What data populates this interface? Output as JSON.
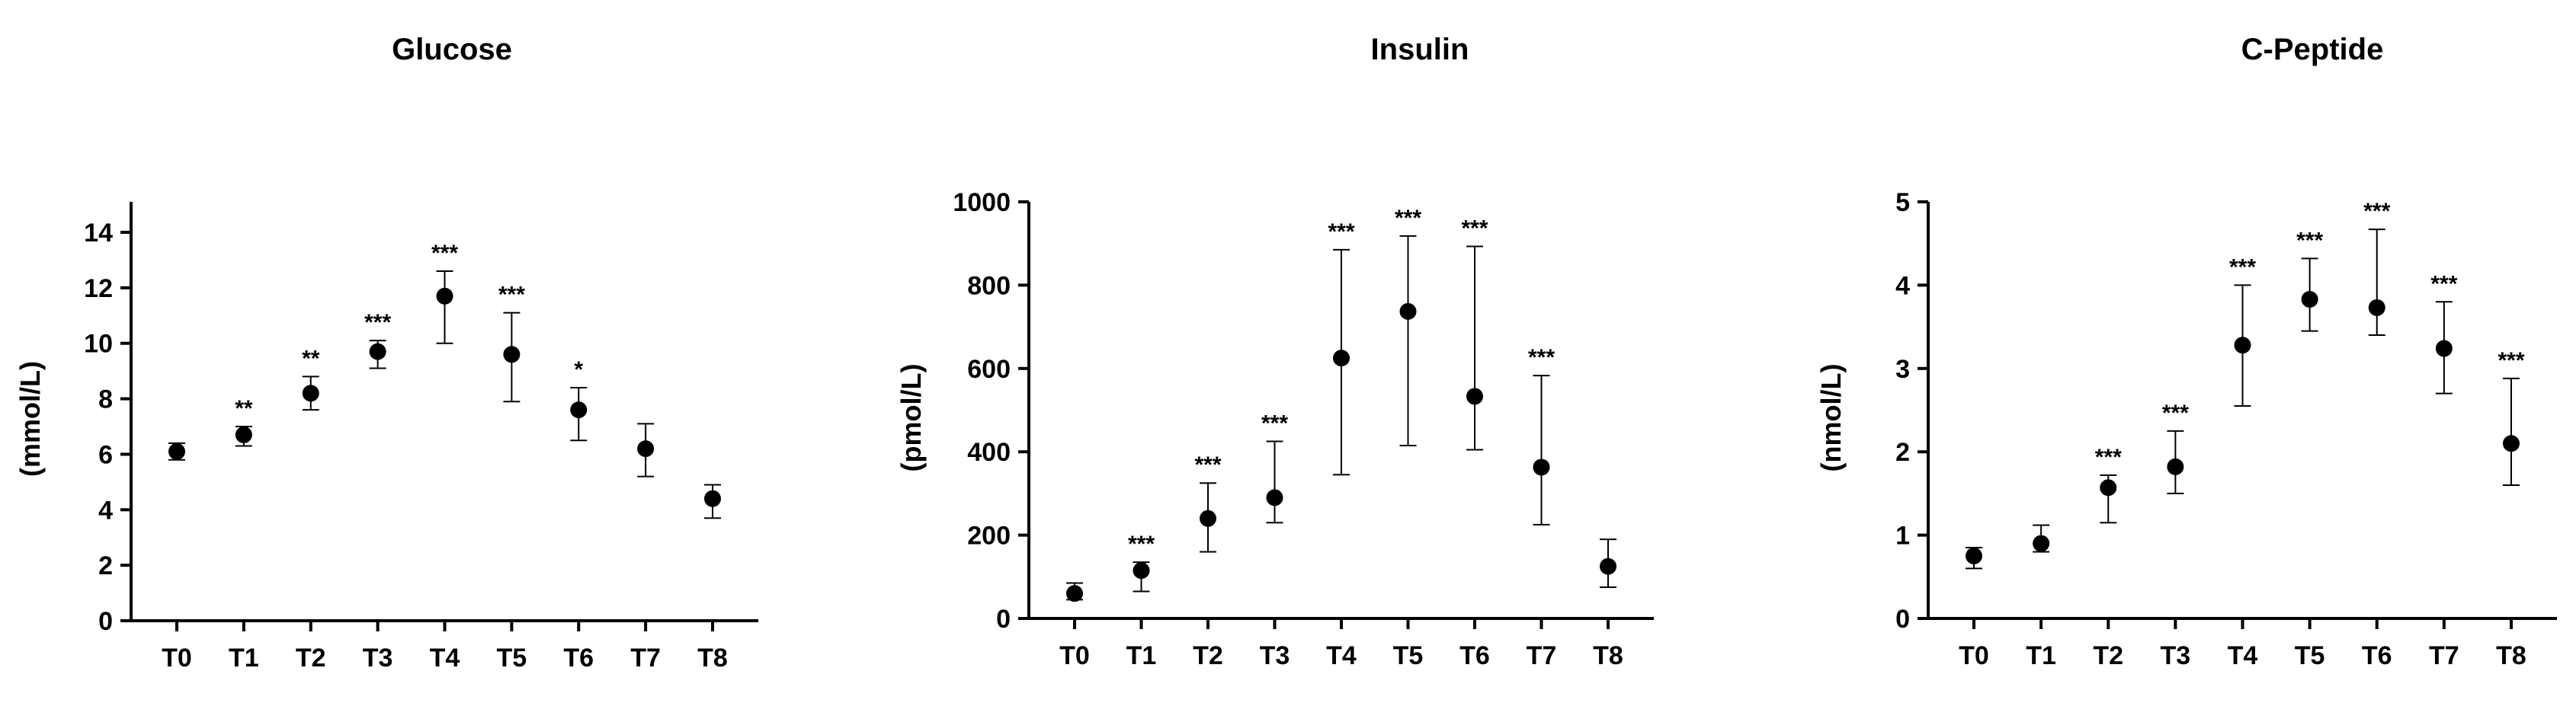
{
  "chart_data": [
    {
      "type": "scatter",
      "title": "Glucose",
      "xlabel": "",
      "ylabel": "(mmol/L)",
      "ylim": [
        0,
        15
      ],
      "yticks": [
        0,
        2,
        4,
        6,
        8,
        10,
        12,
        14
      ],
      "categories": [
        "T0",
        "T1",
        "T2",
        "T3",
        "T4",
        "T5",
        "T6",
        "T7",
        "T8"
      ],
      "series": [
        {
          "name": "Glucose",
          "values": [
            6.1,
            6.7,
            8.2,
            9.7,
            11.7,
            9.6,
            7.6,
            6.2,
            4.4
          ],
          "err_low": [
            5.8,
            6.3,
            7.6,
            9.1,
            10.0,
            7.9,
            6.5,
            5.2,
            3.7
          ],
          "err_high": [
            6.4,
            7.0,
            8.8,
            10.1,
            12.6,
            11.1,
            8.4,
            7.1,
            4.9
          ],
          "significance": [
            "",
            "**",
            "**",
            "***",
            "***",
            "***",
            "*",
            "",
            ""
          ]
        }
      ]
    },
    {
      "type": "scatter",
      "title": "Insulin",
      "xlabel": "",
      "ylabel": "(pmol/L)",
      "ylim": [
        0,
        1000
      ],
      "yticks": [
        0,
        200,
        400,
        600,
        800,
        1000
      ],
      "categories": [
        "T0",
        "T1",
        "T2",
        "T3",
        "T4",
        "T5",
        "T6",
        "T7",
        "T8"
      ],
      "series": [
        {
          "name": "Insulin",
          "values": [
            60,
            115,
            240,
            290,
            625,
            737,
            533,
            363,
            125
          ],
          "err_low": [
            45,
            65,
            160,
            230,
            345,
            415,
            405,
            225,
            75
          ],
          "err_high": [
            85,
            135,
            325,
            425,
            885,
            918,
            893,
            583,
            190
          ],
          "significance": [
            "",
            "***",
            "***",
            "***",
            "***",
            "***",
            "***",
            "***",
            ""
          ]
        }
      ]
    },
    {
      "type": "scatter",
      "title": "C-Peptide",
      "xlabel": "",
      "ylabel": "(nmol/L)",
      "ylim": [
        0,
        5
      ],
      "yticks": [
        0,
        1,
        2,
        3,
        4,
        5
      ],
      "categories": [
        "T0",
        "T1",
        "T2",
        "T3",
        "T4",
        "T5",
        "T6",
        "T7",
        "T8"
      ],
      "series": [
        {
          "name": "C-Peptide",
          "values": [
            0.75,
            0.9,
            1.57,
            1.82,
            3.28,
            3.83,
            3.73,
            3.24,
            2.1
          ],
          "err_low": [
            0.6,
            0.8,
            1.15,
            1.5,
            2.55,
            3.45,
            3.4,
            2.7,
            1.6
          ],
          "err_high": [
            0.85,
            1.12,
            1.72,
            2.25,
            4.0,
            4.32,
            4.67,
            3.8,
            2.88
          ],
          "significance": [
            "",
            "",
            "***",
            "***",
            "***",
            "***",
            "***",
            "***",
            "***"
          ]
        }
      ]
    }
  ]
}
